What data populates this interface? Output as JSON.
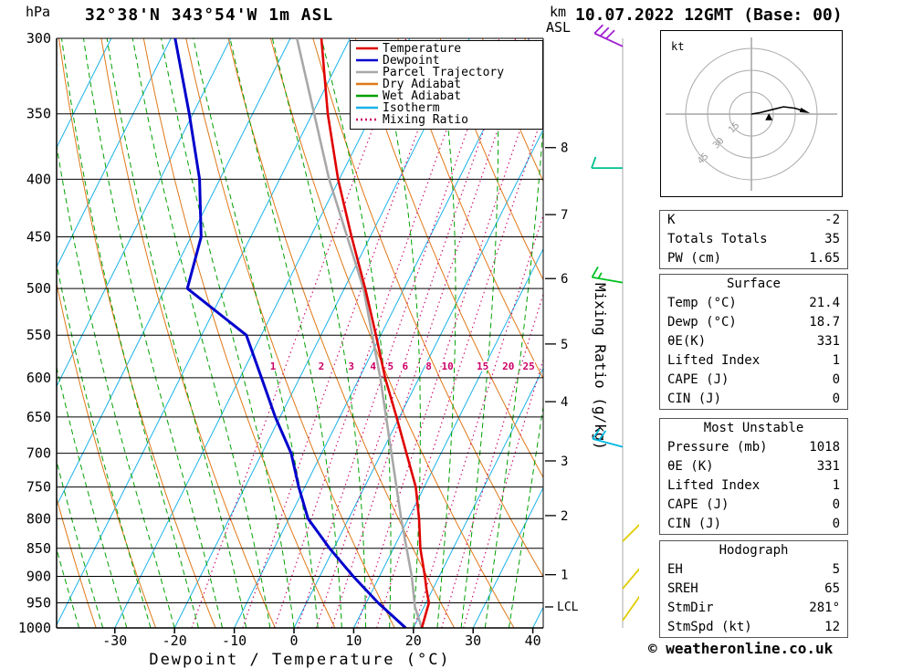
{
  "header": {
    "station": "32°38'N 343°54'W 1m ASL",
    "datetime": "10.07.2022 12GMT (Base: 00)"
  },
  "footer": {
    "copyright": "© weatheronline.co.uk"
  },
  "axes": {
    "pressure_unit": "hPa",
    "km_unit_line1": "km",
    "km_unit_line2": "ASL",
    "xlabel": "Dewpoint / Temperature (°C)",
    "right_label": "Mixing Ratio (g/kg)",
    "lcl": "LCL"
  },
  "legend": {
    "items": [
      {
        "label": "Temperature",
        "color": "#e00000",
        "style": "solid"
      },
      {
        "label": "Dewpoint",
        "color": "#0000cc",
        "style": "solid"
      },
      {
        "label": "Parcel Trajectory",
        "color": "#a8a8a8",
        "style": "solid"
      },
      {
        "label": "Dry Adiabat",
        "color": "#e07818",
        "style": "solid"
      },
      {
        "label": "Wet Adiabat",
        "color": "#00a000",
        "style": "solid"
      },
      {
        "label": "Isotherm",
        "color": "#1ab2e8",
        "style": "solid"
      },
      {
        "label": "Mixing Ratio",
        "color": "#cc0066",
        "style": "dotted"
      }
    ]
  },
  "hodograph": {
    "unit": "kt",
    "rings": [
      15,
      30,
      45
    ],
    "trace": [
      [
        0,
        0
      ],
      [
        6,
        1
      ],
      [
        14,
        3
      ],
      [
        22,
        5
      ],
      [
        30,
        4
      ],
      [
        36,
        2
      ]
    ],
    "storm_marker": [
      12,
      -2
    ]
  },
  "tables": {
    "indices": {
      "rows": [
        {
          "label": "K",
          "value": "-2"
        },
        {
          "label": "Totals Totals",
          "value": "35"
        },
        {
          "label": "PW (cm)",
          "value": "1.65"
        }
      ]
    },
    "surface": {
      "title": "Surface",
      "rows": [
        {
          "label": "Temp (°C)",
          "value": "21.4"
        },
        {
          "label": "Dewp (°C)",
          "value": "18.7"
        },
        {
          "label": "θE(K)",
          "value": "331"
        },
        {
          "label": "Lifted Index",
          "value": "1"
        },
        {
          "label": "CAPE (J)",
          "value": "0"
        },
        {
          "label": "CIN (J)",
          "value": "0"
        }
      ]
    },
    "most_unstable": {
      "title": "Most Unstable",
      "rows": [
        {
          "label": "Pressure (mb)",
          "value": "1018"
        },
        {
          "label": "θE (K)",
          "value": "331"
        },
        {
          "label": "Lifted Index",
          "value": "1"
        },
        {
          "label": "CAPE (J)",
          "value": "0"
        },
        {
          "label": "CIN (J)",
          "value": "0"
        }
      ]
    },
    "hodograph": {
      "title": "Hodograph",
      "rows": [
        {
          "label": "EH",
          "value": "5"
        },
        {
          "label": "SREH",
          "value": "65"
        },
        {
          "label": "StmDir",
          "value": "281°"
        },
        {
          "label": "StmSpd (kt)",
          "value": "12"
        }
      ]
    }
  },
  "chart_data": {
    "type": "skewt-log-p",
    "title": "32°38'N 343°54'W 1m ASL",
    "xlabel": "Dewpoint / Temperature (°C)",
    "ylabel": "hPa",
    "pressure_range": [
      300,
      1000
    ],
    "temp_range": [
      -40,
      45
    ],
    "pressure_ticks": [
      300,
      350,
      400,
      450,
      500,
      550,
      600,
      650,
      700,
      750,
      800,
      850,
      900,
      950,
      1000
    ],
    "temp_ticks": [
      -30,
      -20,
      -10,
      0,
      10,
      20,
      30,
      40
    ],
    "km_ticks": [
      {
        "km": 8,
        "p": 375
      },
      {
        "km": 7,
        "p": 430
      },
      {
        "km": 6,
        "p": 490
      },
      {
        "km": 5,
        "p": 560
      },
      {
        "km": 4,
        "p": 630
      },
      {
        "km": 3,
        "p": 711
      },
      {
        "km": 2,
        "p": 795
      },
      {
        "km": 1,
        "p": 897
      }
    ],
    "lcl_pressure": 958,
    "mixing_ratio_values": [
      1,
      2,
      3,
      4,
      5,
      6,
      8,
      10,
      15,
      20,
      25
    ],
    "series": {
      "temperature": {
        "color": "#e00000",
        "points": [
          [
            1000,
            21.4
          ],
          [
            950,
            20.5
          ],
          [
            925,
            19.0
          ],
          [
            900,
            17.6
          ],
          [
            850,
            14.5
          ],
          [
            800,
            11.8
          ],
          [
            750,
            8.6
          ],
          [
            700,
            4.2
          ],
          [
            650,
            -0.5
          ],
          [
            600,
            -5.7
          ],
          [
            550,
            -10.8
          ],
          [
            500,
            -16.5
          ],
          [
            450,
            -23.1
          ],
          [
            400,
            -30.2
          ],
          [
            350,
            -37.4
          ],
          [
            300,
            -44.8
          ]
        ]
      },
      "dewpoint": {
        "color": "#0000cc",
        "points": [
          [
            1000,
            18.7
          ],
          [
            950,
            12.0
          ],
          [
            900,
            5.6
          ],
          [
            850,
            -0.7
          ],
          [
            800,
            -6.8
          ],
          [
            750,
            -11.0
          ],
          [
            700,
            -15.1
          ],
          [
            650,
            -20.8
          ],
          [
            600,
            -26.4
          ],
          [
            550,
            -32.5
          ],
          [
            500,
            -46.3
          ],
          [
            450,
            -48.3
          ],
          [
            400,
            -53.4
          ],
          [
            350,
            -60.6
          ],
          [
            300,
            -69.3
          ]
        ]
      },
      "parcel": {
        "color": "#a8a8a8",
        "points": [
          [
            1000,
            21.4
          ],
          [
            958,
            18.5
          ],
          [
            900,
            15.4
          ],
          [
            800,
            8.8
          ],
          [
            700,
            1.7
          ],
          [
            600,
            -6.5
          ],
          [
            500,
            -16.8
          ],
          [
            400,
            -31.7
          ],
          [
            300,
            -48.9
          ]
        ]
      }
    },
    "wind_barbs": [
      {
        "p": 305,
        "dir": 295,
        "speed": 30,
        "color": "#a020d0"
      },
      {
        "p": 391,
        "dir": 270,
        "speed": 10,
        "color": "#00c090"
      },
      {
        "p": 494,
        "dir": 280,
        "speed": 15,
        "color": "#00c020"
      },
      {
        "p": 691,
        "dir": 285,
        "speed": 20,
        "color": "#00b8e0"
      },
      {
        "p": 838,
        "dir": 45,
        "speed": 10,
        "color": "#e0cc00"
      },
      {
        "p": 923,
        "dir": 40,
        "speed": 10,
        "color": "#e0cc00"
      },
      {
        "p": 985,
        "dir": 35,
        "speed": 5,
        "color": "#e0cc00"
      }
    ]
  }
}
